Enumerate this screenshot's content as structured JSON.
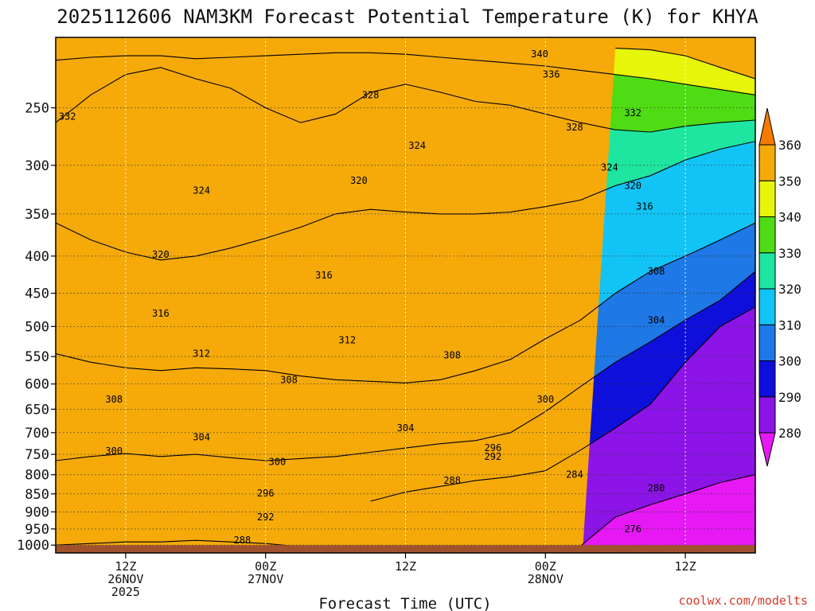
{
  "title": "2025112606 NAM3KM Forecast Potential Temperature (K) for KHYA",
  "credit": "coolwx.com/modelts",
  "chart_data": {
    "type": "heatmap",
    "title": "2025112606 NAM3KM Forecast Potential Temperature (K) for KHYA",
    "xlabel": "Forecast Time (UTC)",
    "ylabel": "",
    "x_ticks": [
      {
        "hour": 6,
        "lines": [
          "12Z",
          "26NOV",
          "2025"
        ]
      },
      {
        "hour": 18,
        "lines": [
          "00Z",
          "27NOV"
        ]
      },
      {
        "hour": 30,
        "lines": [
          "12Z"
        ]
      },
      {
        "hour": 42,
        "lines": [
          "00Z",
          "28NOV"
        ]
      },
      {
        "hour": 54,
        "lines": [
          "12Z"
        ]
      }
    ],
    "xlim": [
      0,
      60
    ],
    "y_ticks": [
      250,
      300,
      350,
      400,
      450,
      500,
      550,
      600,
      650,
      700,
      750,
      800,
      850,
      900,
      950,
      1000
    ],
    "ylim": [
      1025,
      200
    ],
    "y_scale": "log",
    "grid": true,
    "colorbar": {
      "levels": [
        280,
        290,
        300,
        310,
        320,
        330,
        340,
        350,
        360
      ],
      "colors": [
        "#e619f5",
        "#8c14e6",
        "#0f0fdc",
        "#1e78e6",
        "#12c3f5",
        "#1ee6a0",
        "#50dc14",
        "#e6f50a",
        "#f5aa0a",
        "#f57a00"
      ]
    },
    "contour_levels": [
      276,
      280,
      284,
      288,
      292,
      296,
      300,
      304,
      308,
      312,
      316,
      320,
      324,
      328,
      332,
      336,
      340
    ],
    "x_hours": [
      0,
      3,
      6,
      9,
      12,
      15,
      18,
      21,
      24,
      27,
      30,
      33,
      36,
      39,
      42,
      45,
      48,
      51,
      54,
      57,
      60
    ],
    "isentropes": [
      {
        "theta": 280,
        "pressure": [
          null,
          null,
          null,
          null,
          null,
          null,
          null,
          null,
          null,
          null,
          null,
          null,
          null,
          null,
          null,
          1003,
          915,
          880,
          850,
          820,
          800
        ]
      },
      {
        "theta": 290,
        "pressure": [
          1000,
          995,
          990,
          990,
          985,
          990,
          995,
          1005,
          null,
          870,
          845,
          830,
          815,
          805,
          790,
          740,
          690,
          640,
          560,
          500,
          470
        ]
      },
      {
        "theta": 300,
        "pressure": [
          765,
          755,
          748,
          755,
          750,
          758,
          765,
          760,
          755,
          745,
          735,
          725,
          718,
          700,
          655,
          605,
          560,
          525,
          490,
          460,
          420
        ]
      },
      {
        "theta": 310,
        "pressure": [
          545,
          560,
          570,
          575,
          570,
          572,
          575,
          585,
          592,
          595,
          598,
          592,
          575,
          555,
          520,
          490,
          450,
          420,
          400,
          380,
          360
        ]
      },
      {
        "theta": 320,
        "pressure": [
          360,
          380,
          395,
          405,
          400,
          390,
          378,
          365,
          350,
          345,
          348,
          350,
          350,
          348,
          342,
          335,
          320,
          310,
          295,
          285,
          278
        ]
      },
      {
        "theta": 330,
        "pressure": [
          262,
          240,
          225,
          220,
          228,
          235,
          250,
          262,
          255,
          238,
          232,
          238,
          245,
          248,
          255,
          262,
          268,
          270,
          265,
          262,
          260
        ]
      },
      {
        "theta": 340,
        "pressure": [
          215,
          213,
          212,
          212,
          214,
          213,
          212,
          211,
          210,
          210,
          211,
          213,
          215,
          217,
          219,
          222,
          225,
          228,
          232,
          236,
          240
        ]
      },
      {
        "theta": 350,
        "pressure": [
          null,
          null,
          null,
          null,
          null,
          null,
          null,
          null,
          null,
          null,
          null,
          null,
          null,
          null,
          null,
          null,
          207,
          208,
          212,
          220,
          228
        ]
      }
    ],
    "annotations": [
      {
        "text": "340",
        "hour": 41.5,
        "pressure": 211
      },
      {
        "text": "336",
        "hour": 42.5,
        "pressure": 225
      },
      {
        "text": "332",
        "hour": 1,
        "pressure": 257
      },
      {
        "text": "332",
        "hour": 49.5,
        "pressure": 254
      },
      {
        "text": "328",
        "hour": 27,
        "pressure": 240
      },
      {
        "text": "328",
        "hour": 44.5,
        "pressure": 266
      },
      {
        "text": "324",
        "hour": 31,
        "pressure": 282
      },
      {
        "text": "324",
        "hour": 47.5,
        "pressure": 302
      },
      {
        "text": "324",
        "hour": 12.5,
        "pressure": 325
      },
      {
        "text": "320",
        "hour": 26,
        "pressure": 315
      },
      {
        "text": "320",
        "hour": 49.5,
        "pressure": 320
      },
      {
        "text": "320",
        "hour": 9,
        "pressure": 398
      },
      {
        "text": "316",
        "hour": 50.5,
        "pressure": 342
      },
      {
        "text": "316",
        "hour": 23,
        "pressure": 425
      },
      {
        "text": "316",
        "hour": 9,
        "pressure": 480
      },
      {
        "text": "312",
        "hour": 12.5,
        "pressure": 545
      },
      {
        "text": "312",
        "hour": 25,
        "pressure": 522
      },
      {
        "text": "308",
        "hour": 51.5,
        "pressure": 420
      },
      {
        "text": "308",
        "hour": 20,
        "pressure": 592
      },
      {
        "text": "308",
        "hour": 34,
        "pressure": 548
      },
      {
        "text": "308",
        "hour": 5,
        "pressure": 630
      },
      {
        "text": "304",
        "hour": 51.5,
        "pressure": 490
      },
      {
        "text": "304",
        "hour": 30,
        "pressure": 690
      },
      {
        "text": "304",
        "hour": 12.5,
        "pressure": 710
      },
      {
        "text": "300",
        "hour": 42,
        "pressure": 630
      },
      {
        "text": "300",
        "hour": 5,
        "pressure": 742
      },
      {
        "text": "300",
        "hour": 19,
        "pressure": 768
      },
      {
        "text": "296",
        "hour": 37.5,
        "pressure": 735
      },
      {
        "text": "296",
        "hour": 18,
        "pressure": 848
      },
      {
        "text": "292",
        "hour": 37.5,
        "pressure": 755
      },
      {
        "text": "292",
        "hour": 18,
        "pressure": 915
      },
      {
        "text": "288",
        "hour": 34,
        "pressure": 815
      },
      {
        "text": "288",
        "hour": 16,
        "pressure": 985
      },
      {
        "text": "284",
        "hour": 44.5,
        "pressure": 800
      },
      {
        "text": "280",
        "hour": 51.5,
        "pressure": 835
      },
      {
        "text": "276",
        "hour": 49.5,
        "pressure": 950
      }
    ],
    "surface": {
      "pressure": 1000,
      "color": "#a0522d"
    }
  }
}
